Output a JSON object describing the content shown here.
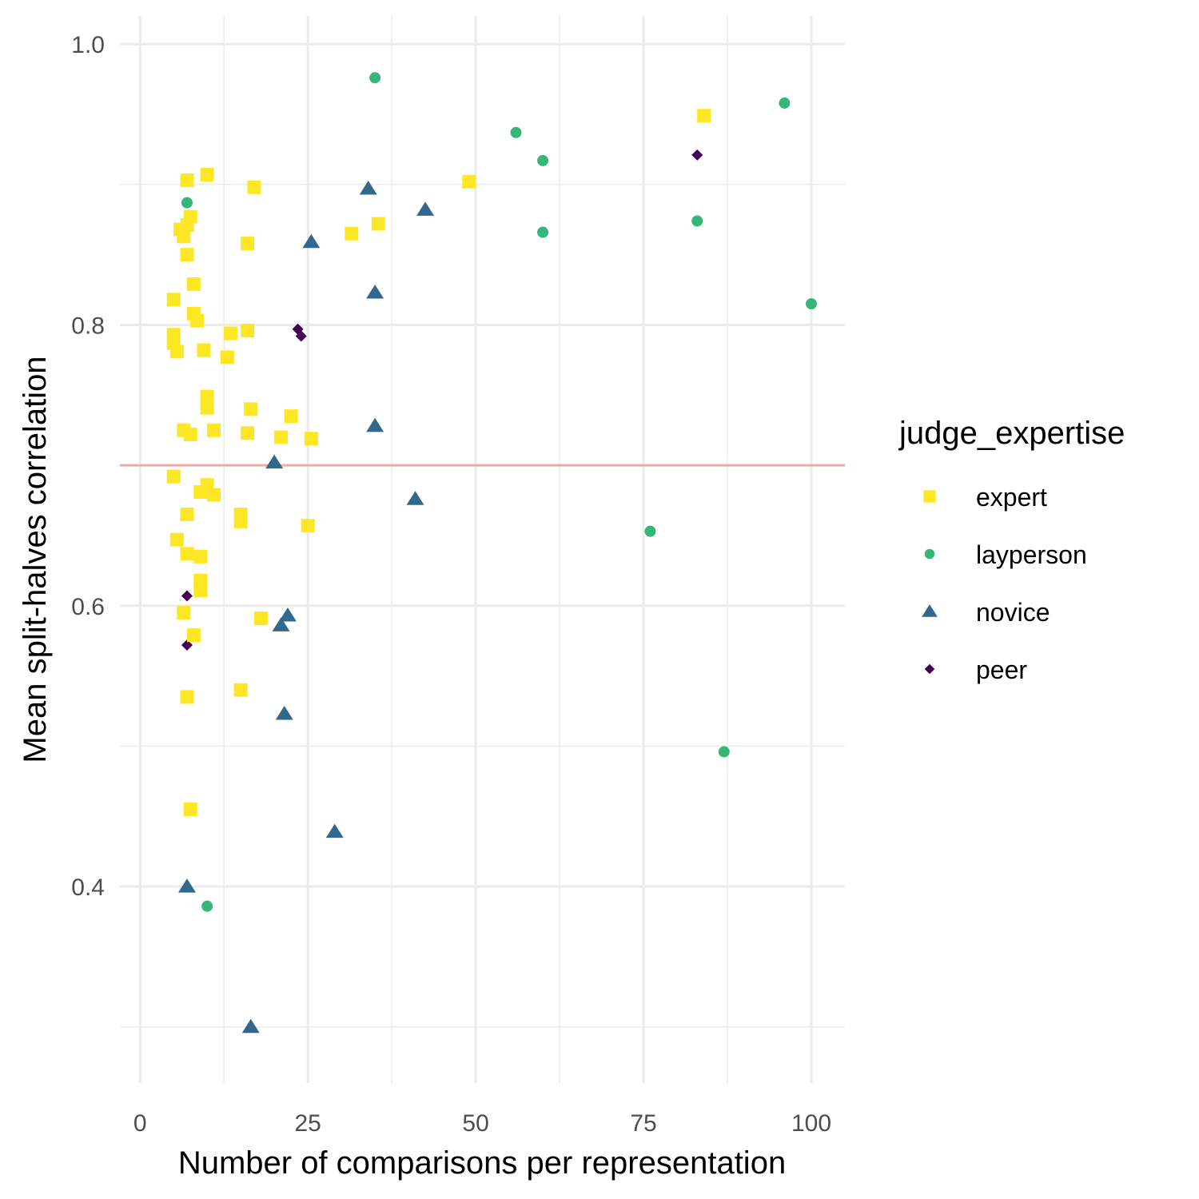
{
  "chart_data": {
    "type": "scatter",
    "xlabel": "Number of comparisons per representation",
    "ylabel": "Mean split-halves correlation",
    "xlim": [
      -3,
      105
    ],
    "ylim": [
      0.26,
      1.02
    ],
    "x_ticks": [
      0,
      25,
      50,
      75,
      100
    ],
    "x_tick_labels": [
      "0",
      "25",
      "50",
      "75",
      "100"
    ],
    "x_minor_ticks": [
      12.5,
      37.5,
      62.5,
      87.5
    ],
    "y_ticks": [
      0.4,
      0.6,
      0.8,
      1.0
    ],
    "y_tick_labels": [
      "0.4",
      "0.6",
      "0.8",
      "1.0"
    ],
    "y_minor_ticks": [
      0.3,
      0.5,
      0.7,
      0.9
    ],
    "grid": true,
    "reference_line": {
      "y": 0.7,
      "color": "#f2a8a8"
    },
    "legend": {
      "title": "judge_expertise",
      "position": "right"
    },
    "series": [
      {
        "name": "expert",
        "marker": "square",
        "color": "#fde725",
        "points": [
          [
            7,
            0.903
          ],
          [
            10,
            0.907
          ],
          [
            17,
            0.898
          ],
          [
            7.5,
            0.877
          ],
          [
            6,
            0.868
          ],
          [
            7,
            0.871
          ],
          [
            6.5,
            0.863
          ],
          [
            16,
            0.858
          ],
          [
            7,
            0.85
          ],
          [
            8,
            0.829
          ],
          [
            5,
            0.818
          ],
          [
            8,
            0.808
          ],
          [
            8.5,
            0.803
          ],
          [
            5,
            0.793
          ],
          [
            5,
            0.787
          ],
          [
            5.5,
            0.781
          ],
          [
            9.5,
            0.782
          ],
          [
            13.5,
            0.794
          ],
          [
            16,
            0.796
          ],
          [
            13,
            0.777
          ],
          [
            10,
            0.749
          ],
          [
            10,
            0.741
          ],
          [
            16.5,
            0.74
          ],
          [
            22.5,
            0.735
          ],
          [
            6.5,
            0.725
          ],
          [
            7.5,
            0.722
          ],
          [
            11,
            0.725
          ],
          [
            16,
            0.723
          ],
          [
            21,
            0.72
          ],
          [
            25.5,
            0.719
          ],
          [
            5,
            0.692
          ],
          [
            10,
            0.686
          ],
          [
            9,
            0.681
          ],
          [
            11,
            0.679
          ],
          [
            15,
            0.665
          ],
          [
            15,
            0.66
          ],
          [
            7,
            0.665
          ],
          [
            25,
            0.657
          ],
          [
            5.5,
            0.647
          ],
          [
            7,
            0.637
          ],
          [
            9,
            0.635
          ],
          [
            9,
            0.618
          ],
          [
            9,
            0.611
          ],
          [
            6.5,
            0.595
          ],
          [
            18,
            0.591
          ],
          [
            8,
            0.579
          ],
          [
            15,
            0.54
          ],
          [
            7,
            0.535
          ],
          [
            7.5,
            0.455
          ],
          [
            31.5,
            0.865
          ],
          [
            35.5,
            0.872
          ],
          [
            49,
            0.902
          ],
          [
            84,
            0.949
          ]
        ]
      },
      {
        "name": "layperson",
        "marker": "circle",
        "color": "#35b779",
        "points": [
          [
            35,
            0.976
          ],
          [
            96,
            0.958
          ],
          [
            56,
            0.937
          ],
          [
            60,
            0.917
          ],
          [
            7,
            0.887
          ],
          [
            83,
            0.874
          ],
          [
            60,
            0.866
          ],
          [
            100,
            0.815
          ],
          [
            76,
            0.653
          ],
          [
            87,
            0.496
          ],
          [
            10,
            0.386
          ]
        ]
      },
      {
        "name": "novice",
        "marker": "triangle",
        "color": "#31688e",
        "points": [
          [
            34,
            0.897
          ],
          [
            42.5,
            0.882
          ],
          [
            25.5,
            0.859
          ],
          [
            35,
            0.823
          ],
          [
            35,
            0.728
          ],
          [
            20,
            0.702
          ],
          [
            41,
            0.676
          ],
          [
            22,
            0.593
          ],
          [
            21,
            0.586
          ],
          [
            21.5,
            0.523
          ],
          [
            29,
            0.439
          ],
          [
            7,
            0.4
          ],
          [
            16.5,
            0.3
          ]
        ]
      },
      {
        "name": "peer",
        "marker": "diamond",
        "color": "#440154",
        "points": [
          [
            83,
            0.921
          ],
          [
            23.5,
            0.797
          ],
          [
            24,
            0.792
          ],
          [
            10,
            0.741
          ],
          [
            7,
            0.607
          ],
          [
            7,
            0.572
          ]
        ]
      }
    ]
  }
}
